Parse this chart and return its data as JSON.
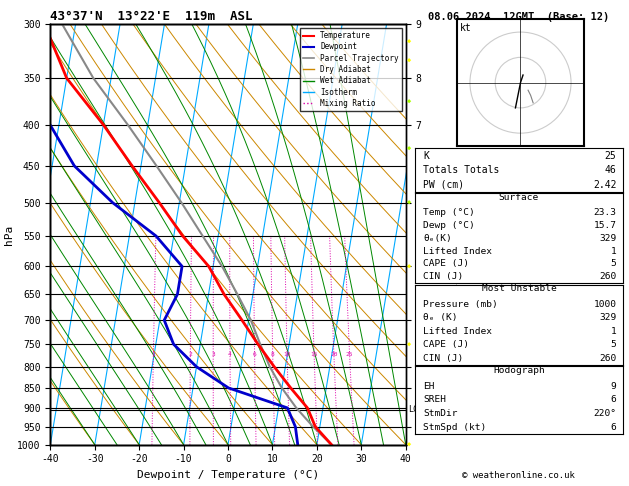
{
  "title_left": "43°37'N  13°22'E  119m  ASL",
  "title_right": "08.06.2024  12GMT  (Base: 12)",
  "xlabel": "Dewpoint / Temperature (°C)",
  "pressure_levels": [
    300,
    350,
    400,
    450,
    500,
    550,
    600,
    650,
    700,
    750,
    800,
    850,
    900,
    950,
    1000
  ],
  "temp_ticks": [
    -40,
    -30,
    -20,
    -10,
    0,
    10,
    20,
    30,
    40
  ],
  "temp_profile_p": [
    1000,
    950,
    900,
    850,
    800,
    750,
    700,
    650,
    600,
    550,
    500,
    450,
    400,
    350,
    300
  ],
  "temp_profile_t": [
    23.3,
    19.0,
    16.5,
    12.0,
    7.5,
    3.0,
    -1.5,
    -6.5,
    -11.0,
    -18.0,
    -24.5,
    -32.0,
    -40.0,
    -50.0,
    -57.0
  ],
  "dewp_profile_p": [
    1000,
    950,
    900,
    850,
    800,
    750,
    700,
    650,
    600,
    550,
    500,
    450,
    400,
    350,
    300
  ],
  "dewp_profile_t": [
    15.7,
    14.5,
    12.0,
    -2.0,
    -10.0,
    -16.0,
    -19.0,
    -17.0,
    -17.0,
    -24.0,
    -35.0,
    -45.0,
    -52.0,
    -60.0,
    -65.0
  ],
  "parcel_profile_p": [
    1000,
    950,
    900,
    850,
    800,
    750,
    700,
    650,
    600,
    550,
    500,
    450,
    400,
    350,
    300
  ],
  "parcel_profile_t": [
    23.3,
    18.5,
    14.0,
    10.0,
    6.5,
    3.5,
    0.5,
    -3.5,
    -8.0,
    -13.5,
    -19.5,
    -26.5,
    -34.5,
    -44.0,
    -53.0
  ],
  "lcl_pressure": 905,
  "skew_factor": 30,
  "mixing_ratios": [
    1,
    2,
    3,
    4,
    6,
    8,
    10,
    15,
    20,
    25
  ],
  "colors": {
    "temperature": "#ff0000",
    "dewpoint": "#0000cc",
    "parcel": "#888888",
    "dry_adiabat": "#cc8800",
    "wet_adiabat": "#008800",
    "isotherm": "#00aaff",
    "mixing_ratio": "#dd00aa",
    "background": "#ffffff"
  },
  "km_pressures": [
    950,
    850,
    800,
    700,
    600,
    500,
    400,
    350,
    300
  ],
  "km_values": [
    1,
    2,
    3,
    4,
    5,
    6,
    7,
    8,
    9
  ],
  "stats": {
    "K": 25,
    "Totals_Totals": 46,
    "PW_cm": "2.42",
    "Surface_Temp": "23.3",
    "Surface_Dewp": "15.7",
    "Surface_ThetaE": 329,
    "Surface_LiftedIndex": 1,
    "Surface_CAPE": 5,
    "Surface_CIN": 260,
    "MU_Pressure": 1000,
    "MU_ThetaE": 329,
    "MU_LiftedIndex": 1,
    "MU_CAPE": 5,
    "MU_CIN": 260,
    "Hodo_EH": 9,
    "Hodo_SREH": 6,
    "Hodo_StmDir": "220°",
    "Hodo_StmSpd": 6
  },
  "hodo_u": [
    -2,
    -1,
    0,
    1,
    2,
    2,
    1
  ],
  "hodo_v": [
    -10,
    -5,
    0,
    3,
    5,
    2,
    0
  ],
  "hodo_gray_u": [
    3,
    4,
    5
  ],
  "hodo_gray_v": [
    -3,
    -5,
    -8
  ]
}
